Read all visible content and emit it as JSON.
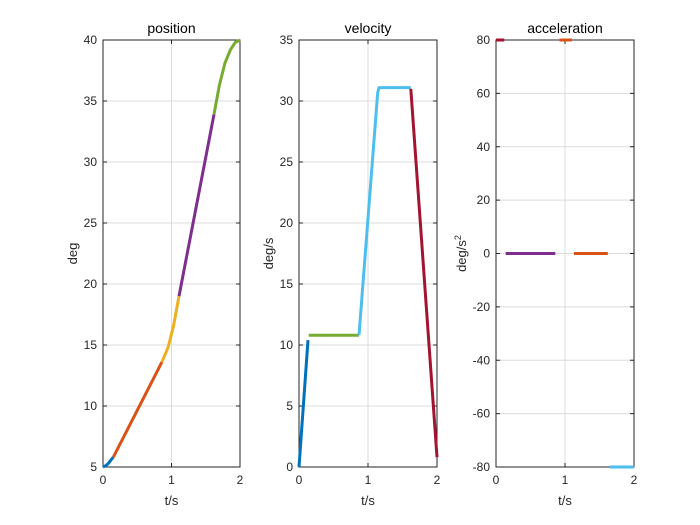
{
  "chart_data": [
    {
      "type": "line",
      "title": "position",
      "xlabel": "t/s",
      "ylabel": "deg",
      "xlim": [
        0,
        2
      ],
      "ylim": [
        5,
        40
      ],
      "xticks": [
        "0",
        "1",
        "2"
      ],
      "yticks": [
        "5",
        "10",
        "15",
        "20",
        "25",
        "30",
        "35",
        "40"
      ],
      "grid": true,
      "series": [
        {
          "color": "#0072BD",
          "x": [
            0,
            0.04,
            0.08,
            0.12,
            0.15
          ],
          "y": [
            5.0,
            5.1,
            5.3,
            5.6,
            5.8
          ]
        },
        {
          "color": "#D95319",
          "x": [
            0.15,
            0.86
          ],
          "y": [
            5.8,
            13.6
          ]
        },
        {
          "color": "#EDB120",
          "x": [
            0.86,
            0.95,
            1.03,
            1.11
          ],
          "y": [
            13.6,
            14.8,
            16.6,
            19.0
          ]
        },
        {
          "color": "#7E2F8E",
          "x": [
            1.11,
            1.62
          ],
          "y": [
            19.0,
            33.9
          ]
        },
        {
          "color": "#77AC30",
          "x": [
            1.62,
            1.7,
            1.78,
            1.86,
            1.93,
            2.0
          ],
          "y": [
            33.9,
            36.3,
            38.1,
            39.2,
            39.8,
            40.0
          ]
        }
      ]
    },
    {
      "type": "line",
      "title": "velocity",
      "xlabel": "t/s",
      "ylabel": "deg/s",
      "xlim": [
        0,
        2
      ],
      "ylim": [
        0,
        35
      ],
      "xticks": [
        "0",
        "1",
        "2"
      ],
      "yticks": [
        "0",
        "5",
        "10",
        "15",
        "20",
        "25",
        "30",
        "35"
      ],
      "grid": true,
      "series": [
        {
          "color": "#0072BD",
          "x": [
            0,
            0.13
          ],
          "y": [
            0,
            10.4
          ]
        },
        {
          "color": "#77AC30",
          "x": [
            0.14,
            0.87
          ],
          "y": [
            10.8,
            10.8
          ]
        },
        {
          "color": "#4DBEEE",
          "x": [
            0.87,
            1.14,
            1.16,
            1.62
          ],
          "y": [
            10.8,
            30.7,
            31.1,
            31.1
          ]
        },
        {
          "color": "#A2142F",
          "x": [
            1.62,
            2.0
          ],
          "y": [
            31.0,
            0.8
          ]
        }
      ]
    },
    {
      "type": "line",
      "title": "acceleration",
      "xlabel": "t/s",
      "ylabel": "deg/s",
      "ylabel_sup": "2",
      "xlim": [
        0,
        2
      ],
      "ylim": [
        -80,
        80
      ],
      "xticks": [
        "0",
        "1",
        "2"
      ],
      "yticks": [
        "80",
        "60",
        "40",
        "20",
        "0",
        "-20",
        "-40",
        "-60",
        "-80"
      ],
      "grid": true,
      "series": [
        {
          "color": "#A2142F",
          "x": [
            0,
            0.12
          ],
          "y": [
            80,
            80
          ]
        },
        {
          "color": "#7E2F8E",
          "x": [
            0.14,
            0.86
          ],
          "y": [
            0,
            0
          ]
        },
        {
          "color": "#D95319",
          "x": [
            0.92,
            1.1
          ],
          "y": [
            80,
            80
          ]
        },
        {
          "color": "#D95319",
          "x": [
            1.13,
            1.62
          ],
          "y": [
            0,
            0
          ]
        },
        {
          "color": "#4DBEEE",
          "x": [
            1.65,
            2.0
          ],
          "y": [
            -80,
            -80
          ]
        }
      ]
    }
  ]
}
